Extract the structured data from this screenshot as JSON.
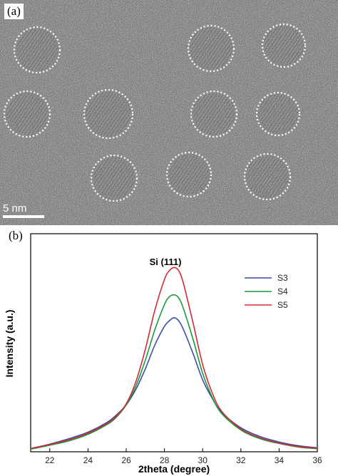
{
  "panels": {
    "a_label": "(a)",
    "b_label": "(b)"
  },
  "tem": {
    "scale_bar_label": "5 nm"
  },
  "colors": {
    "S3": "#3a4fa8",
    "S4": "#1a9a3a",
    "S5": "#d42a35",
    "tem_circle": "#ffffff"
  },
  "chart_data": {
    "type": "line",
    "annotation": "Si (111)",
    "xlabel": "2theta (degree)",
    "ylabel": "Intensity (a.u.)",
    "xlim": [
      21,
      36
    ],
    "ylim": [
      0,
      1
    ],
    "x_ticks": [
      22,
      24,
      26,
      28,
      30,
      32,
      34,
      36
    ],
    "x_tick_labels": [
      "22",
      "24",
      "26",
      "28",
      "30",
      "32",
      "34",
      "36"
    ],
    "legend_position": "top-right",
    "grid": false,
    "x": [
      21,
      22,
      23,
      24,
      25,
      25.5,
      26,
      26.5,
      27,
      27.5,
      28,
      28.25,
      28.5,
      28.75,
      29,
      29.5,
      30,
      30.5,
      31,
      32,
      33,
      34,
      35,
      36
    ],
    "series": [
      {
        "name": "S3",
        "color": "#3a4fa8",
        "values": [
          0.015,
          0.035,
          0.06,
          0.09,
          0.135,
          0.17,
          0.215,
          0.285,
          0.38,
          0.49,
          0.575,
          0.6,
          0.615,
          0.6,
          0.56,
          0.45,
          0.33,
          0.245,
          0.18,
          0.11,
          0.07,
          0.045,
          0.028,
          0.018
        ]
      },
      {
        "name": "S4",
        "color": "#1a9a3a",
        "values": [
          0.012,
          0.03,
          0.05,
          0.08,
          0.125,
          0.16,
          0.215,
          0.3,
          0.42,
          0.56,
          0.675,
          0.71,
          0.72,
          0.705,
          0.655,
          0.515,
          0.36,
          0.25,
          0.175,
          0.1,
          0.06,
          0.038,
          0.022,
          0.014
        ]
      },
      {
        "name": "S5",
        "color": "#d42a35",
        "values": [
          0.015,
          0.033,
          0.055,
          0.085,
          0.13,
          0.165,
          0.22,
          0.32,
          0.47,
          0.65,
          0.79,
          0.83,
          0.845,
          0.83,
          0.77,
          0.59,
          0.4,
          0.27,
          0.185,
          0.105,
          0.064,
          0.04,
          0.024,
          0.016
        ]
      }
    ]
  }
}
